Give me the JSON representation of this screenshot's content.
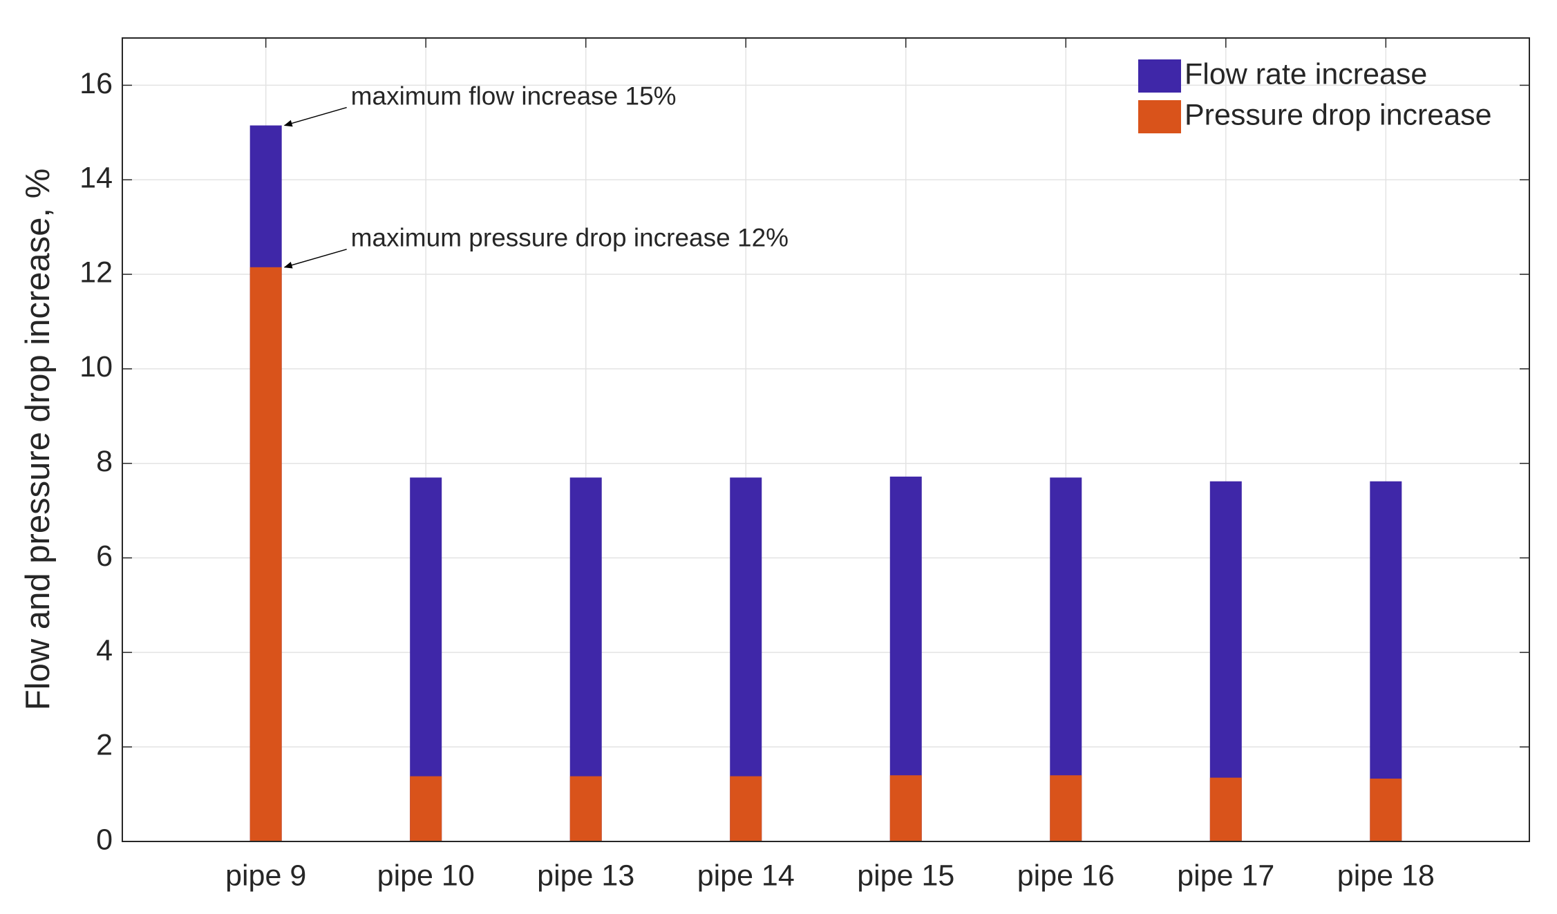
{
  "chart_data": {
    "type": "bar",
    "ylabel": "Flow and pressure drop increase, %",
    "categories": [
      "pipe 9",
      "pipe 10",
      "pipe 13",
      "pipe 14",
      "pipe 15",
      "pipe 16",
      "pipe 17",
      "pipe 18"
    ],
    "series": [
      {
        "name": "Flow rate increase",
        "color": "#3f27a8",
        "values": [
          15.15,
          7.7,
          7.7,
          7.7,
          7.72,
          7.7,
          7.62,
          7.62
        ]
      },
      {
        "name": "Pressure drop increase",
        "color": "#d9531b",
        "values": [
          12.15,
          1.38,
          1.38,
          1.38,
          1.4,
          1.4,
          1.35,
          1.33
        ]
      }
    ],
    "ylim": [
      0,
      17
    ],
    "yticks": [
      0,
      2,
      4,
      6,
      8,
      10,
      12,
      14,
      16
    ],
    "grid": true,
    "legend": "northeast",
    "annotations": [
      {
        "text": "maximum flow increase 15%"
      },
      {
        "text": "maximum pressure drop increase 12%"
      }
    ]
  }
}
